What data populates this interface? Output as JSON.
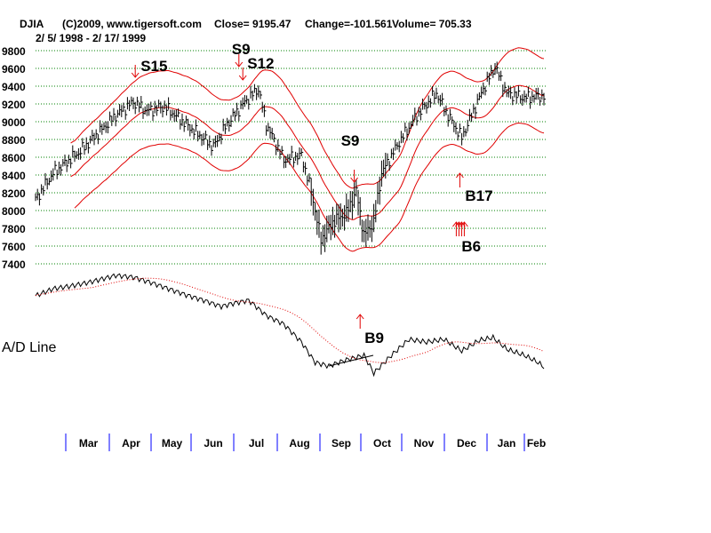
{
  "chart_data": {
    "type": "bar",
    "subtype": "ohlc-with-bands",
    "title": "DJIA",
    "copyright": "(C)2009, www.tigersoft.com",
    "close_label": "Close=  9195.47",
    "change_label": "Change=-101.561",
    "volume_label": "Volume= 705.33",
    "date_range": "2/ 5/ 1998 - 2/ 17/ 1999",
    "ylim": [
      7400,
      9800
    ],
    "yticks": [
      9800,
      9600,
      9400,
      9200,
      9000,
      8800,
      8600,
      8400,
      8200,
      8000,
      7800,
      7600,
      7400
    ],
    "grid": true,
    "x_unit": "trading day index",
    "close_series": [
      [
        0,
        8120
      ],
      [
        9,
        8420
      ],
      [
        23,
        8670
      ],
      [
        41,
        9070
      ],
      [
        50,
        9220
      ],
      [
        57,
        9120
      ],
      [
        66,
        9170
      ],
      [
        77,
        8970
      ],
      [
        91,
        8720
      ],
      [
        98,
        8970
      ],
      [
        107,
        9220
      ],
      [
        114,
        9370
      ],
      [
        118,
        8970
      ],
      [
        127,
        8570
      ],
      [
        136,
        8620
      ],
      [
        141,
        8220
      ],
      [
        146,
        7670
      ],
      [
        152,
        7870
      ],
      [
        159,
        7970
      ],
      [
        164,
        8220
      ],
      [
        168,
        7720
      ],
      [
        173,
        7870
      ],
      [
        177,
        8420
      ],
      [
        186,
        8770
      ],
      [
        195,
        9070
      ],
      [
        205,
        9320
      ],
      [
        211,
        9070
      ],
      [
        218,
        8820
      ],
      [
        223,
        9070
      ],
      [
        229,
        9370
      ],
      [
        235,
        9620
      ],
      [
        241,
        9320
      ],
      [
        250,
        9270
      ],
      [
        260,
        9290
      ]
    ],
    "months": [
      "Mar",
      "Apr",
      "May",
      "Jun",
      "Jul",
      "Aug",
      "Sep",
      "Oct",
      "Nov",
      "Dec",
      "Jan",
      "Feb"
    ],
    "signals": [
      {
        "label": "S15",
        "type": "sell",
        "day": 51,
        "value": 9500
      },
      {
        "label": "S9",
        "type": "sell",
        "day": 104,
        "value": 9620
      },
      {
        "label": "S12",
        "type": "sell",
        "day": 106,
        "value": 9470
      },
      {
        "label": "S9",
        "type": "sell",
        "day": 163,
        "value": 8320
      },
      {
        "label": "B17",
        "type": "buy",
        "day": 217,
        "value": 8420
      },
      {
        "label": "B6",
        "type": "buy",
        "day": 217,
        "value": 7870
      }
    ],
    "ad_panel": {
      "label": "A/D Line",
      "values": [
        [
          0,
          107
        ],
        [
          9,
          115
        ],
        [
          18,
          118
        ],
        [
          27,
          122
        ],
        [
          41,
          130
        ],
        [
          50,
          128
        ],
        [
          59,
          122
        ],
        [
          68,
          115
        ],
        [
          77,
          108
        ],
        [
          86,
          102
        ],
        [
          95,
          95
        ],
        [
          100,
          98
        ],
        [
          109,
          102
        ],
        [
          118,
          85
        ],
        [
          127,
          75
        ],
        [
          136,
          55
        ],
        [
          143,
          32
        ],
        [
          150,
          28
        ],
        [
          159,
          35
        ],
        [
          168,
          40
        ],
        [
          173,
          20
        ],
        [
          182,
          40
        ],
        [
          191,
          58
        ],
        [
          200,
          55
        ],
        [
          209,
          58
        ],
        [
          218,
          45
        ],
        [
          227,
          57
        ],
        [
          234,
          60
        ],
        [
          241,
          47
        ],
        [
          250,
          40
        ],
        [
          257,
          32
        ],
        [
          261,
          25
        ]
      ],
      "signal": {
        "label": "B9",
        "type": "buy",
        "day": 166
      }
    }
  }
}
